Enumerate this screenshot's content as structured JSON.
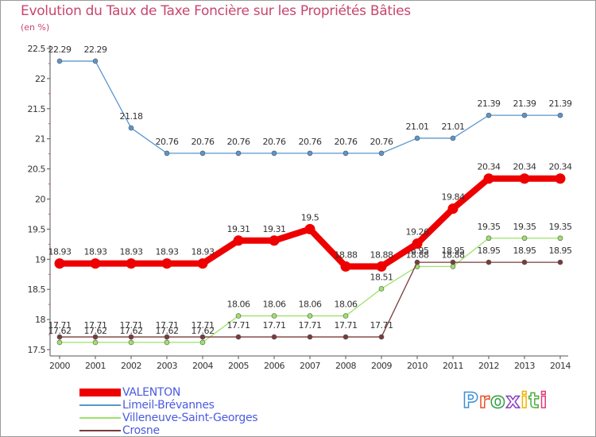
{
  "title": "Evolution du Taux de Taxe Foncière sur les Propriétés Bâties",
  "unit": "(en %)",
  "brand": {
    "name": "Proxiti",
    "letter_colors": [
      "#3b8fd6",
      "#e8512a",
      "#2e9e3f",
      "#8a3fbf",
      "#f0b400",
      "#4cae3a",
      "#e23a7c"
    ]
  },
  "chart_data": {
    "type": "line",
    "title": "Evolution du Taux de Taxe Foncière sur les Propriétés Bâties",
    "ylabel": "(en %)",
    "xlabel": "",
    "ylim": [
      17.5,
      22.5
    ],
    "yticks": [
      "17.5",
      "18",
      "18.5",
      "19",
      "19.5",
      "20",
      "20.5",
      "21",
      "21.5",
      "22",
      "22.5"
    ],
    "x": [
      "2000",
      "2001",
      "2002",
      "2003",
      "2004",
      "2005",
      "2006",
      "2007",
      "2008",
      "2009",
      "2010",
      "2011",
      "2012",
      "2013",
      "2014"
    ],
    "grid": false,
    "legend": "bottom-left",
    "series": [
      {
        "name": "Limeil-Brévannes",
        "color": "#5a96cc",
        "style": "thin",
        "values": [
          22.29,
          22.29,
          21.18,
          20.76,
          20.76,
          20.76,
          20.76,
          20.76,
          20.76,
          20.76,
          21.01,
          21.01,
          21.39,
          21.39,
          21.39
        ],
        "labels": [
          "22.29",
          "22.29",
          "21.18",
          "20.76",
          "20.76",
          "20.76",
          "20.76",
          "20.76",
          "20.76",
          "20.76",
          "21.01",
          "21.01",
          "21.39",
          "21.39",
          "21.39"
        ]
      },
      {
        "name": "Villeneuve-Saint-Georges",
        "color": "#9de36a",
        "style": "thin",
        "values": [
          17.62,
          17.62,
          17.62,
          17.62,
          17.62,
          18.06,
          18.06,
          18.06,
          18.06,
          18.51,
          18.88,
          18.88,
          19.35,
          19.35,
          19.35
        ],
        "labels": [
          "17.62",
          "17.62",
          "17.62",
          "17.62",
          "17.62",
          "18.06",
          "18.06",
          "18.06",
          "18.06",
          "18.51",
          "18.88",
          "18.88",
          "19.35",
          "19.35",
          "19.35"
        ]
      },
      {
        "name": "Crosne",
        "color": "#7a3b3b",
        "style": "thin",
        "values": [
          17.71,
          17.71,
          17.71,
          17.71,
          17.71,
          17.71,
          17.71,
          17.71,
          17.71,
          17.71,
          18.95,
          18.95,
          18.95,
          18.95,
          18.95
        ],
        "labels": [
          "17.71",
          "17.71",
          "17.71",
          "17.71",
          "17.71",
          "17.71",
          "17.71",
          "17.71",
          "17.71",
          "17.71",
          "18.95",
          "18.95",
          "18.95",
          "18.95",
          "18.95"
        ]
      },
      {
        "name": "VALENTON",
        "color": "#ee0000",
        "style": "thick",
        "values": [
          18.93,
          18.93,
          18.93,
          18.93,
          18.93,
          19.31,
          19.31,
          19.5,
          18.88,
          18.88,
          19.26,
          19.84,
          20.34,
          20.34,
          20.34
        ],
        "labels": [
          "18.93",
          "18.93",
          "18.93",
          "18.93",
          "18.93",
          "19.31",
          "19.31",
          "19.5",
          "18.88",
          "18.88",
          "19.26",
          "19.84",
          "20.34",
          "20.34",
          "20.34"
        ]
      }
    ],
    "legend_order": [
      "VALENTON",
      "Limeil-Brévannes",
      "Villeneuve-Saint-Georges",
      "Crosne"
    ]
  }
}
